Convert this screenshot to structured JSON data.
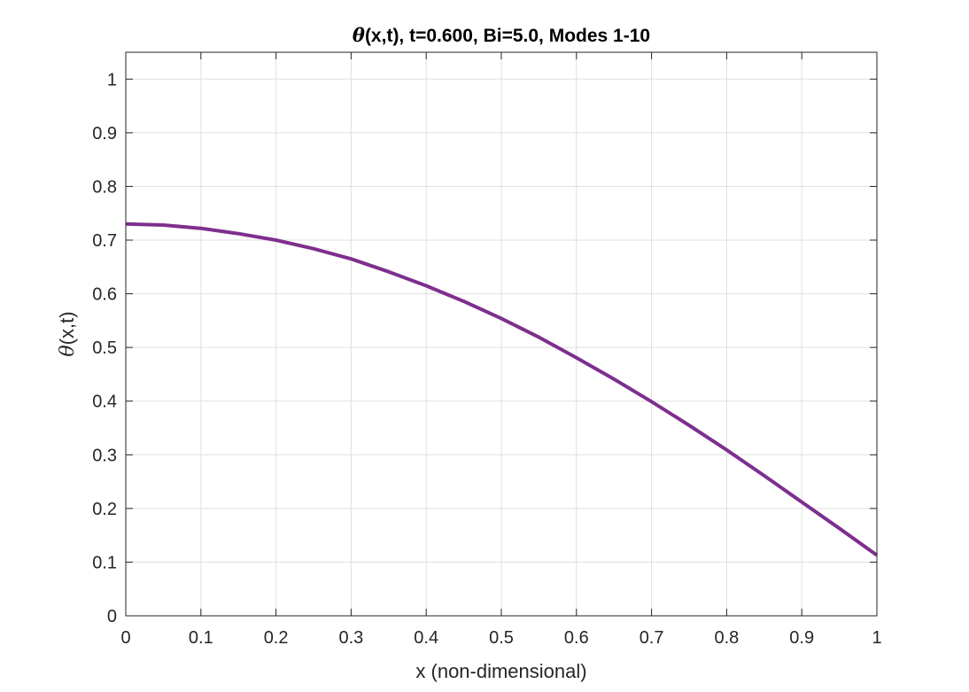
{
  "chart_data": {
    "type": "line",
    "title_symbol": "θ",
    "title_rest": "(x,t), t=0.600, Bi=5.0, Modes 1-10",
    "xlabel": "x (non-dimensional)",
    "ylabel_symbol": "θ",
    "ylabel_rest": "(x,t)",
    "xlim": [
      0,
      1
    ],
    "ylim": [
      0,
      1.05
    ],
    "xticks": [
      0,
      0.1,
      0.2,
      0.3,
      0.4,
      0.5,
      0.6,
      0.7,
      0.8,
      0.9,
      1
    ],
    "xtick_labels": [
      "0",
      "0.1",
      "0.2",
      "0.3",
      "0.4",
      "0.5",
      "0.6",
      "0.7",
      "0.8",
      "0.9",
      "1"
    ],
    "yticks": [
      0,
      0.1,
      0.2,
      0.3,
      0.4,
      0.5,
      0.6,
      0.7,
      0.8,
      0.9,
      1
    ],
    "ytick_labels": [
      "0",
      "0.1",
      "0.2",
      "0.3",
      "0.4",
      "0.5",
      "0.6",
      "0.7",
      "0.8",
      "0.9",
      "1"
    ],
    "grid": true,
    "series": [
      {
        "color": "#7e2f8e",
        "x": [
          0,
          0.05,
          0.1,
          0.15,
          0.2,
          0.25,
          0.3,
          0.35,
          0.4,
          0.45,
          0.5,
          0.55,
          0.6,
          0.65,
          0.7,
          0.75,
          0.8,
          0.85,
          0.9,
          0.95,
          1.0
        ],
        "y": [
          0.73,
          0.728,
          0.722,
          0.712,
          0.7,
          0.684,
          0.665,
          0.641,
          0.615,
          0.586,
          0.554,
          0.519,
          0.481,
          0.441,
          0.399,
          0.355,
          0.309,
          0.261,
          0.212,
          0.163,
          0.113
        ]
      }
    ]
  }
}
